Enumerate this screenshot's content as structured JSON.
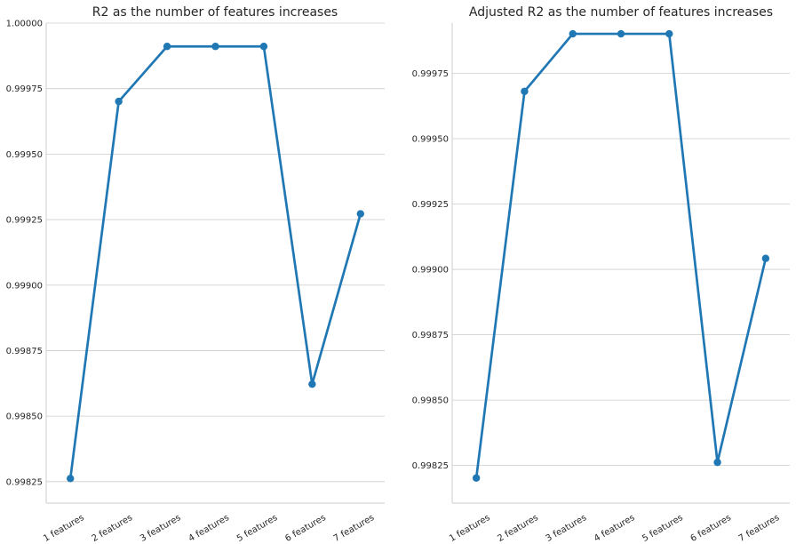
{
  "chart_data": [
    {
      "type": "line",
      "title": "R2 as the number of features increases",
      "categories": [
        "1 features",
        "2 features",
        "3 features",
        "4 features",
        "5 features",
        "6 features",
        "7 features"
      ],
      "values": [
        0.998262,
        0.999701,
        0.999911,
        0.999911,
        0.999911,
        0.998622,
        0.999272
      ],
      "ylim": [
        0.998168,
        1.0
      ],
      "yticks": [
        "0.99825",
        "0.99850",
        "0.99875",
        "0.99900",
        "0.99925",
        "0.99950",
        "0.99975",
        "1.00000"
      ],
      "grid": true,
      "color": "#1f77b4"
    },
    {
      "type": "line",
      "title": "Adjusted R2 as the number of features increases",
      "categories": [
        "1 features",
        "2 features",
        "3 features",
        "4 features",
        "5 features",
        "6 features",
        "7 features"
      ],
      "values": [
        0.998202,
        0.999681,
        0.999901,
        0.999901,
        0.999901,
        0.998262,
        0.999042
      ],
      "ylim": [
        0.998106,
        0.999942
      ],
      "yticks": [
        "0.99825",
        "0.99850",
        "0.99875",
        "0.99900",
        "0.99925",
        "0.99950",
        "0.99975"
      ],
      "grid": true,
      "color": "#1f77b4"
    }
  ]
}
